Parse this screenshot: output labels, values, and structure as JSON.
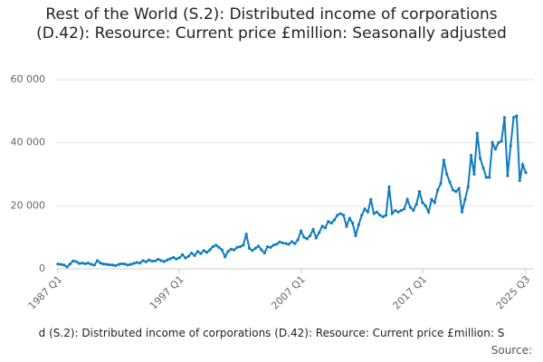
{
  "chart_data": {
    "type": "line",
    "title": "Rest of the World (S.2): Distributed income of corporations (D.42): Resource: Current price £million: Seasonally adjusted",
    "footer": "d (S.2): Distributed income of corporations (D.42): Resource: Current price £million: S",
    "source": "Source:",
    "categories": [
      "1987 Q1",
      null,
      null,
      null,
      null,
      null,
      null,
      null,
      null,
      null,
      null,
      null,
      null,
      null,
      null,
      null,
      null,
      null,
      null,
      null,
      null,
      null,
      null,
      null,
      null,
      null,
      null,
      null,
      null,
      null,
      null,
      null,
      null,
      null,
      null,
      null,
      null,
      null,
      null,
      null,
      "1997 Q1",
      null,
      null,
      null,
      null,
      null,
      null,
      null,
      null,
      null,
      null,
      null,
      null,
      null,
      null,
      null,
      null,
      null,
      null,
      null,
      null,
      null,
      null,
      null,
      null,
      null,
      null,
      null,
      null,
      null,
      null,
      null,
      null,
      null,
      null,
      null,
      null,
      null,
      null,
      null,
      "2007 Q1",
      null,
      null,
      null,
      null,
      null,
      null,
      null,
      null,
      null,
      null,
      null,
      null,
      null,
      null,
      null,
      null,
      null,
      null,
      null,
      null,
      null,
      null,
      null,
      null,
      null,
      null,
      null,
      null,
      null,
      null,
      null,
      null,
      null,
      null,
      null,
      null,
      null,
      null,
      null,
      "2017 Q1",
      null,
      null,
      null,
      null,
      null,
      null,
      null,
      null,
      null,
      null,
      null,
      null,
      null,
      null,
      null,
      null,
      null,
      null,
      null,
      null,
      null,
      null,
      null,
      null,
      null,
      null,
      null,
      null,
      null,
      null,
      null,
      null,
      null,
      "2025 Q3"
    ],
    "series": [
      {
        "name": "Distributed income of corporations",
        "color": "#0f7cbf",
        "values": [
          1500,
          1400,
          1200,
          600,
          1500,
          2500,
          2300,
          1700,
          1800,
          1600,
          1800,
          1400,
          1200,
          2600,
          1800,
          1500,
          1400,
          1300,
          1200,
          1000,
          1400,
          1600,
          1500,
          1200,
          1400,
          1700,
          2000,
          1800,
          2600,
          2200,
          2800,
          2400,
          2500,
          3000,
          2600,
          2300,
          2800,
          3200,
          3600,
          3100,
          3500,
          4500,
          3400,
          4000,
          5000,
          4200,
          5500,
          4800,
          5800,
          5200,
          6000,
          7000,
          7500,
          6800,
          6000,
          3800,
          5500,
          6200,
          6000,
          6800,
          7000,
          7500,
          11000,
          6500,
          5800,
          6500,
          7200,
          6000,
          5000,
          7000,
          6800,
          7500,
          7800,
          8500,
          8200,
          8000,
          7800,
          8600,
          8000,
          9200,
          12000,
          10000,
          9500,
          10500,
          12500,
          9800,
          11500,
          13500,
          13000,
          15000,
          14500,
          15500,
          17000,
          17500,
          17000,
          13500,
          16000,
          14500,
          10500,
          14000,
          17000,
          19000,
          18000,
          22000,
          17500,
          18000,
          17000,
          16500,
          17000,
          26000,
          17500,
          18500,
          18000,
          18500,
          19000,
          22000,
          19500,
          18500,
          20500,
          24500,
          21000,
          20000,
          18000,
          22000,
          21000,
          25000,
          27000,
          34500,
          30000,
          27500,
          25000,
          24500,
          25500,
          18000,
          22000,
          26000,
          36000,
          30000,
          43000,
          35000,
          32000,
          29000,
          29000,
          40000,
          38000,
          40000,
          40500,
          48000,
          29500,
          39000,
          48000,
          48500,
          28000,
          33000,
          30500
        ]
      }
    ],
    "ylim": [
      0,
      60000
    ],
    "yticks": [
      0,
      {
        "value": 20000,
        "label": "20 000"
      },
      {
        "value": 40000,
        "label": "40 000"
      },
      {
        "value": 60000,
        "label": "60 000"
      }
    ],
    "grid": true
  }
}
